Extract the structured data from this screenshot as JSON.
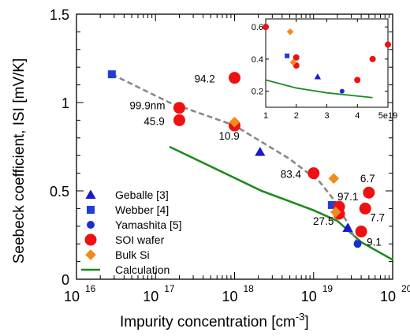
{
  "chart_data": {
    "type": "scatter",
    "xlabel": "Impurity concentration [cm",
    "xlabel_sup": "-3",
    "xlabel_end": "]",
    "ylabel": "Seebeck coefficient, ISI [mV/K]",
    "xscale": "log",
    "xlim": [
      1e+16,
      1e+20
    ],
    "ylim": [
      0,
      1.5
    ],
    "xticks": [
      "16",
      "17",
      "18",
      "19",
      "20"
    ],
    "xtick_base": "10",
    "yticks": [
      "0",
      "0.5",
      "1",
      "1.5"
    ],
    "legend_position": "lower-left",
    "colors": {
      "triangle": "#1a1acc",
      "square": "#1f3fd6",
      "circle_blue": "#1a2fcf",
      "soi": "#ee1111",
      "bulk": "#f08c1e",
      "calc": "#1f8a1f",
      "trend": "#888888"
    },
    "series": [
      {
        "name": "Geballe [3]",
        "marker": "triangle",
        "points": [
          [
            2.1e+18,
            0.72
          ],
          [
            2.7e+19,
            0.29
          ]
        ]
      },
      {
        "name": "Webber [4]",
        "marker": "square",
        "points": [
          [
            2.8e+16,
            1.16
          ],
          [
            1.7e+19,
            0.42
          ]
        ]
      },
      {
        "name": "Yamashita [5]",
        "marker": "circle_blue",
        "points": [
          [
            3.6e+19,
            0.2
          ]
        ]
      },
      {
        "name": "SOI wafer",
        "marker": "soi",
        "points": [
          [
            2e+17,
            0.97
          ],
          [
            2e+17,
            0.9
          ],
          [
            1e+18,
            1.14
          ],
          [
            1e+18,
            0.87
          ],
          [
            1e+19,
            0.6
          ],
          [
            2.1e+19,
            0.41
          ],
          [
            2.1e+19,
            0.37
          ],
          [
            5e+19,
            0.49
          ],
          [
            4.5e+19,
            0.4
          ],
          [
            4e+19,
            0.27
          ]
        ]
      },
      {
        "name": "Bulk Si",
        "marker": "bulk",
        "points": [
          [
            1e+18,
            0.89
          ],
          [
            1.8e+19,
            0.57
          ],
          [
            1.9e+19,
            0.38
          ]
        ]
      },
      {
        "name": "Calculation",
        "marker": "line",
        "points": [
          [
            1.5e+17,
            0.75
          ],
          [
            2.2e+18,
            0.5
          ],
          [
            1e+19,
            0.39
          ],
          [
            2e+19,
            0.33
          ],
          [
            4e+19,
            0.21
          ],
          [
            1e+20,
            0.11
          ]
        ]
      }
    ],
    "trend_line": [
      [
        2.8e+16,
        1.16
      ],
      [
        1.5e+17,
        1.0
      ],
      [
        1e+18,
        0.87
      ],
      [
        5e+18,
        0.68
      ],
      [
        1.2e+19,
        0.55
      ],
      [
        1.8e+19,
        0.45
      ],
      [
        2.6e+19,
        0.33
      ],
      [
        3.6e+19,
        0.2
      ]
    ],
    "annotations": [
      {
        "text": "94.2",
        "x": 1e+18,
        "y": 1.14
      },
      {
        "text": "99.9nm",
        "x": 2e+17,
        "y": 0.97
      },
      {
        "text": "45.9",
        "x": 2e+17,
        "y": 0.9
      },
      {
        "text": "10.9",
        "x": 1e+18,
        "y": 0.87
      },
      {
        "text": "83.4",
        "x": 1e+19,
        "y": 0.6
      },
      {
        "text": "97.1",
        "x": 2.1e+19,
        "y": 0.41
      },
      {
        "text": "27.5",
        "x": 2.1e+19,
        "y": 0.37
      },
      {
        "text": "6.7",
        "x": 5e+19,
        "y": 0.49
      },
      {
        "text": "7.7",
        "x": 4.5e+19,
        "y": 0.4
      },
      {
        "text": "9.1",
        "x": 4e+19,
        "y": 0.27
      }
    ],
    "inset": {
      "type": "scatter",
      "xscale": "linear",
      "xticks": [
        "1",
        "2",
        "3",
        "4",
        "5e19"
      ],
      "xlim": [
        1,
        5
      ],
      "ylim": [
        0.1,
        0.65
      ],
      "yticks": [
        "0.2",
        "0.4",
        "0.6"
      ],
      "series": [
        {
          "marker": "triangle",
          "points": [
            [
              2.7,
              0.29
            ]
          ]
        },
        {
          "marker": "square",
          "points": [
            [
              1.7,
              0.42
            ]
          ]
        },
        {
          "marker": "circle_blue",
          "points": [
            [
              3.5,
              0.2
            ]
          ]
        },
        {
          "marker": "soi",
          "points": [
            [
              1.0,
              0.6
            ],
            [
              2.0,
              0.41
            ],
            [
              2.0,
              0.36
            ],
            [
              4.0,
              0.27
            ],
            [
              4.5,
              0.4
            ],
            [
              5.0,
              0.49
            ]
          ]
        },
        {
          "marker": "bulk",
          "points": [
            [
              1.8,
              0.57
            ],
            [
              1.9,
              0.38
            ]
          ]
        },
        {
          "marker": "line",
          "points": [
            [
              1.0,
              0.27
            ],
            [
              2.0,
              0.22
            ],
            [
              3.0,
              0.19
            ],
            [
              4.0,
              0.17
            ],
            [
              4.5,
              0.16
            ]
          ]
        }
      ]
    }
  }
}
